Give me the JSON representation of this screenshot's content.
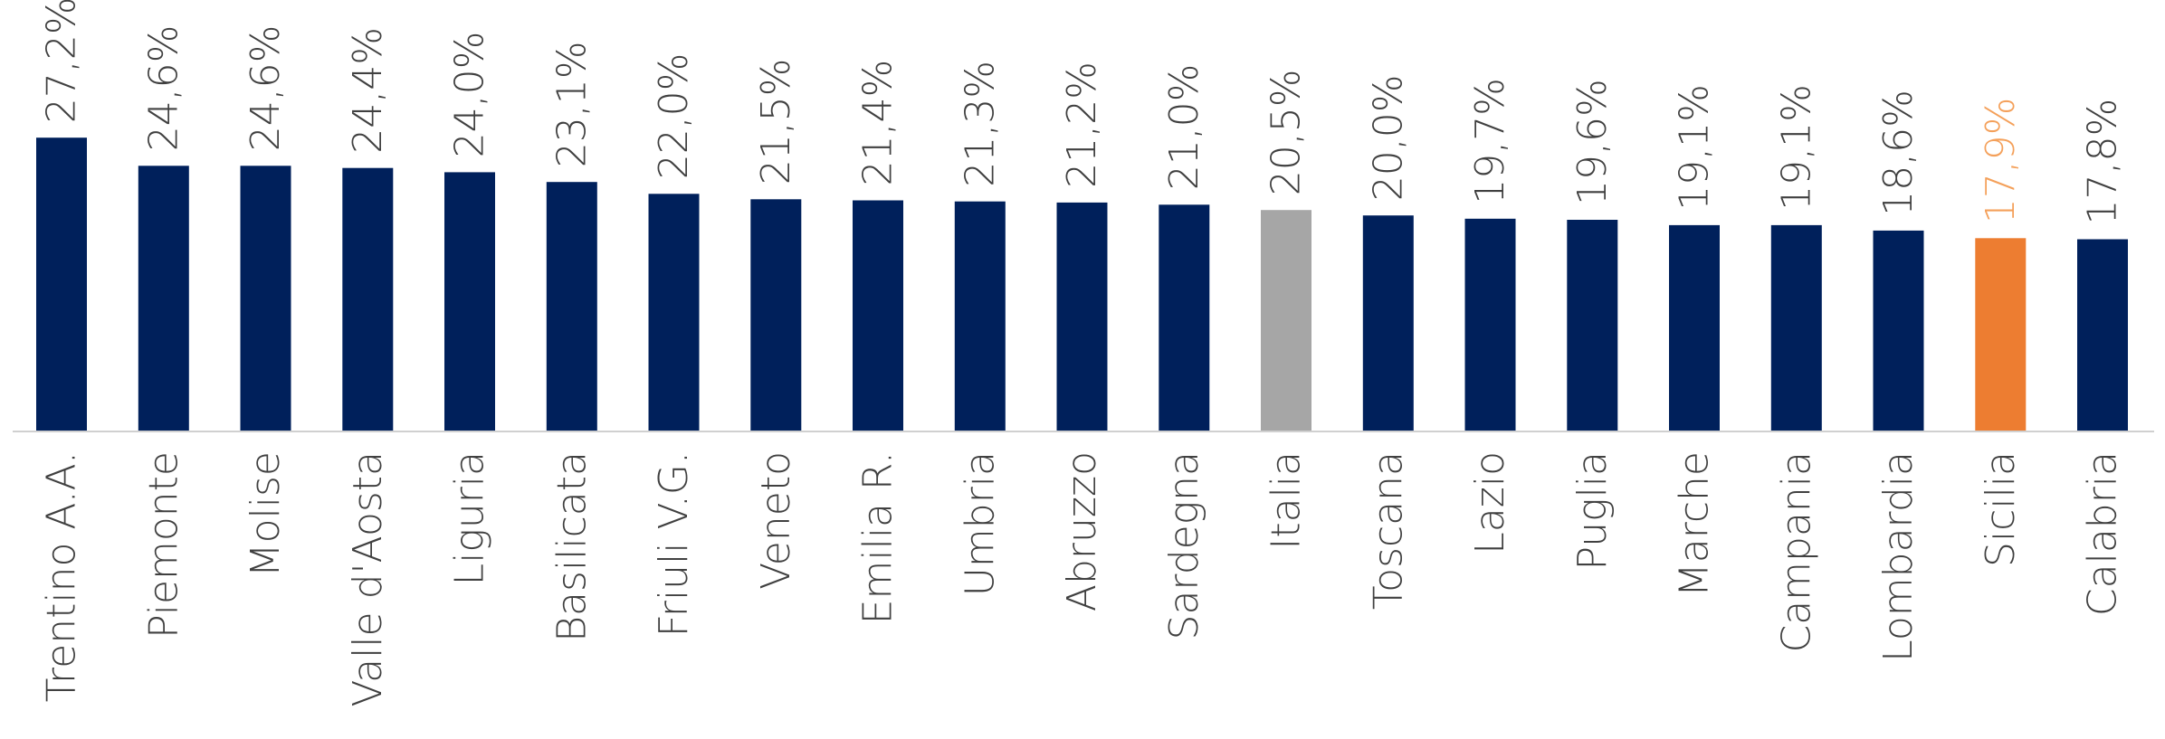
{
  "chart_data": {
    "type": "bar",
    "categories": [
      "Trentino A.A.",
      "Piemonte",
      "Molise",
      "Valle d'Aosta",
      "Liguria",
      "Basilicata",
      "Friuli V.G.",
      "Veneto",
      "Emilia R.",
      "Umbria",
      "Abruzzo",
      "Sardegna",
      "Italia",
      "Toscana",
      "Lazio",
      "Puglia",
      "Marche",
      "Campania",
      "Lombardia",
      "Sicilia",
      "Calabria"
    ],
    "values": [
      27.2,
      24.6,
      24.6,
      24.4,
      24.0,
      23.1,
      22.0,
      21.5,
      21.4,
      21.3,
      21.2,
      21.0,
      20.5,
      20.0,
      19.7,
      19.6,
      19.1,
      19.1,
      18.6,
      17.9,
      17.8
    ],
    "value_labels": [
      "27,2%",
      "24,6%",
      "24,6%",
      "24,4%",
      "24,0%",
      "23,1%",
      "22,0%",
      "21,5%",
      "21,4%",
      "21,3%",
      "21,2%",
      "21,0%",
      "20,5%",
      "20,0%",
      "19,7%",
      "19,6%",
      "19,1%",
      "19,1%",
      "18,6%",
      "17,9%",
      "17,8%"
    ],
    "title": "",
    "xlabel": "",
    "ylabel": "",
    "ylim": [
      0,
      30
    ],
    "grid": false,
    "legend": "none",
    "colors": {
      "default": "#00205b",
      "Italia": "#a6a6a6",
      "Sicilia": "#ed7d31"
    },
    "highlight_label_color": {
      "Sicilia": "#f4a05a"
    }
  }
}
